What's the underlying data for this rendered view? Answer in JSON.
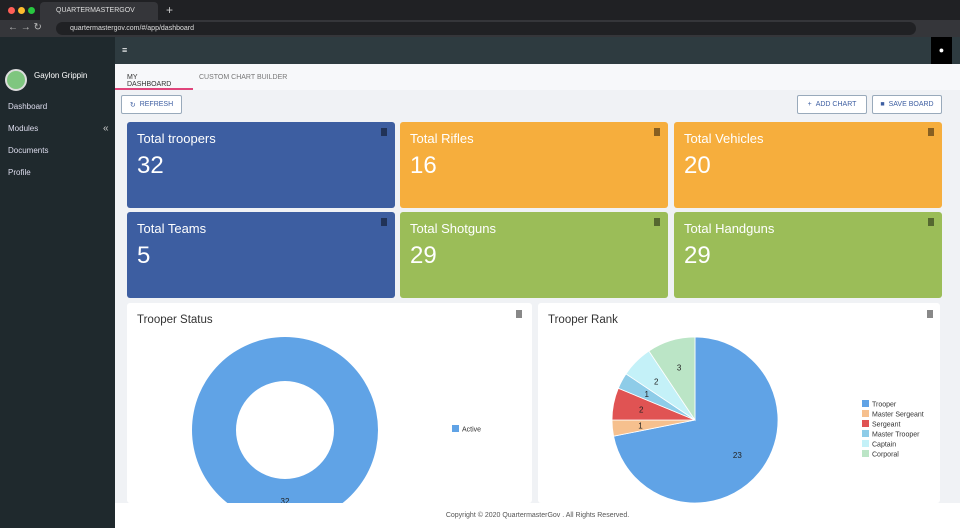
{
  "browser": {
    "tab_title": "QUARTERMASTERGOV",
    "url": "quartermastergov.com/#/app/dashboard"
  },
  "sidebar": {
    "user": "Gaylon Grippin",
    "nav": [
      "Dashboard",
      "Modules",
      "Documents",
      "Profile"
    ]
  },
  "tabs": [
    "MY DASHBOARD",
    "CUSTOM CHART BUILDER"
  ],
  "toolbar": {
    "refresh": "REFRESH",
    "add_chart": "ADD CHART",
    "save_board": "SAVE BOARD"
  },
  "cards": [
    {
      "label": "Total troopers",
      "value": 32,
      "color": "#3d5ea1"
    },
    {
      "label": "Total Rifles",
      "value": 16,
      "color": "#f6ae3d"
    },
    {
      "label": "Total Vehicles",
      "value": 20,
      "color": "#f6ae3d"
    },
    {
      "label": "Total Teams",
      "value": 5,
      "color": "#3d5ea1"
    },
    {
      "label": "Total Shotguns",
      "value": 29,
      "color": "#9bbd58"
    },
    {
      "label": "Total Handguns",
      "value": 29,
      "color": "#9bbd58"
    }
  ],
  "chart_data": [
    {
      "type": "donut",
      "title": "Trooper Status",
      "categories": [
        "Active"
      ],
      "values": [
        32
      ],
      "colors": [
        "#60a3e6"
      ]
    },
    {
      "type": "pie",
      "title": "Trooper Rank",
      "categories": [
        "Trooper",
        "Master Sergeant",
        "Sergeant",
        "Master Trooper",
        "Captain",
        "Corporal"
      ],
      "values": [
        23,
        1,
        2,
        1,
        2,
        3
      ],
      "colors": [
        "#60a3e6",
        "#f6c08e",
        "#e05353",
        "#8ecce8",
        "#c4f1f8",
        "#bbe5c6"
      ]
    }
  ],
  "footer": "Copyright © 2020 QuartermasterGov . All Rights Reserved."
}
